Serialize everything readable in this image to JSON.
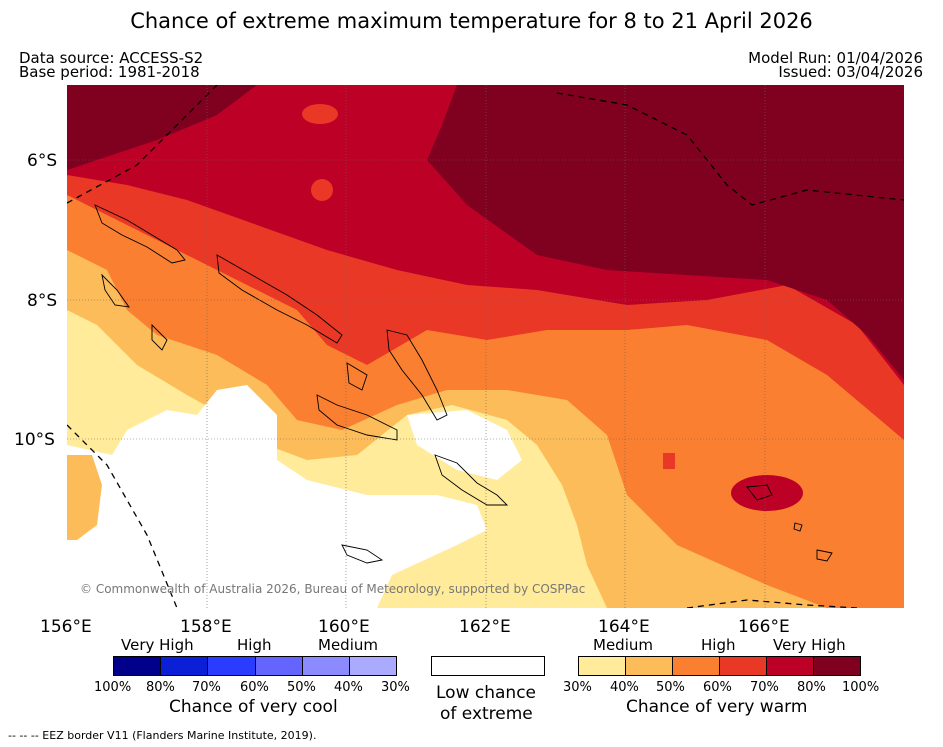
{
  "title": "Chance of extreme maximum temperature for 8 to 21 April 2026",
  "data_source": "Data source: ACCESS-S2",
  "base_period": "Base period: 1981-2018",
  "model_run": "Model Run: 01/04/2026",
  "issued": "Issued: 03/04/2026",
  "copyright": "© Commonwealth of Australia 2026, Bureau of Meteorology, supported by COSPPac",
  "lat_labels": [
    "6°S",
    "8°S",
    "10°S"
  ],
  "lon_labels": [
    "156°E",
    "158°E",
    "160°E",
    "162°E",
    "164°E",
    "166°E"
  ],
  "cool_legend": {
    "levels": [
      "Very High",
      "High",
      "Medium"
    ],
    "colors": [
      "#00008b",
      "#0a1fd6",
      "#2a3cff",
      "#6464ff",
      "#8b8bff",
      "#aaaaff"
    ],
    "percents": [
      "100%",
      "80%",
      "70%",
      "60%",
      "50%",
      "40%",
      "30%"
    ],
    "caption": "Chance of very cool"
  },
  "low_legend": {
    "color": "#ffffff",
    "caption_line1": "Low chance",
    "caption_line2": "of extreme"
  },
  "warm_legend": {
    "levels": [
      "Medium",
      "High",
      "Very High"
    ],
    "colors": [
      "#ffeb99",
      "#fdbc5a",
      "#fb7f30",
      "#ea3826",
      "#bd0026",
      "#800020"
    ],
    "percents": [
      "30%",
      "40%",
      "50%",
      "60%",
      "70%",
      "80%",
      "100%"
    ],
    "caption": "Chance of very warm"
  },
  "footnote": "--  --  -- EEZ border V11 (Flanders Marine Institute, 2019)."
}
